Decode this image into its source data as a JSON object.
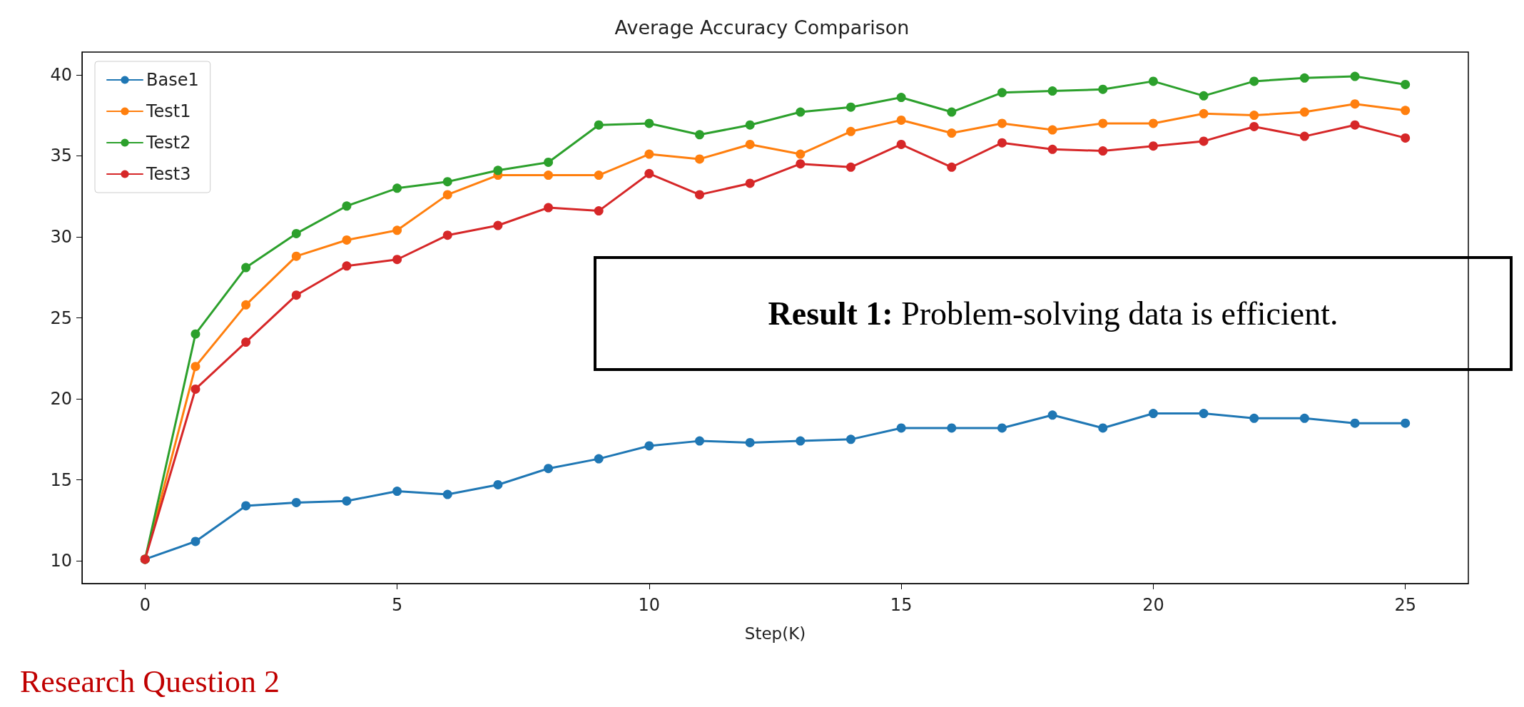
{
  "chart_data": {
    "type": "line",
    "title": "Average Accuracy Comparison",
    "xlabel": "Step(K)",
    "x": [
      0,
      1,
      2,
      3,
      4,
      5,
      6,
      7,
      8,
      9,
      10,
      11,
      12,
      13,
      14,
      15,
      16,
      17,
      18,
      19,
      20,
      21,
      22,
      23,
      24,
      25
    ],
    "series": [
      {
        "name": "Base1",
        "color": "#1f77b4",
        "values": [
          10.1,
          11.2,
          13.4,
          13.6,
          13.7,
          14.3,
          14.1,
          14.7,
          15.7,
          16.3,
          17.1,
          17.4,
          17.3,
          17.4,
          17.5,
          18.2,
          18.2,
          18.2,
          19.0,
          18.2,
          19.1,
          19.1,
          18.8,
          18.8,
          18.5,
          18.5
        ]
      },
      {
        "name": "Test1",
        "color": "#ff7f0e",
        "values": [
          10.1,
          22.0,
          25.8,
          28.8,
          29.8,
          30.4,
          32.6,
          33.8,
          33.8,
          33.8,
          35.1,
          34.8,
          35.7,
          35.1,
          36.5,
          37.2,
          36.4,
          37.0,
          36.6,
          37.0,
          37.0,
          37.6,
          37.5,
          37.7,
          38.2,
          37.8
        ]
      },
      {
        "name": "Test2",
        "color": "#2ca02c",
        "values": [
          10.1,
          24.0,
          28.1,
          30.2,
          31.9,
          33.0,
          33.4,
          34.1,
          34.6,
          36.9,
          37.0,
          36.3,
          36.9,
          37.7,
          38.0,
          38.6,
          37.7,
          38.9,
          39.0,
          39.1,
          39.6,
          38.7,
          39.6,
          39.8,
          39.9,
          39.4
        ]
      },
      {
        "name": "Test3",
        "color": "#d62728",
        "values": [
          10.1,
          20.6,
          23.5,
          26.4,
          28.2,
          28.6,
          30.1,
          30.7,
          31.8,
          31.6,
          33.9,
          32.6,
          33.3,
          34.5,
          34.3,
          35.7,
          34.3,
          35.8,
          35.4,
          35.3,
          35.6,
          35.9,
          36.8,
          36.2,
          36.9,
          36.1
        ]
      }
    ],
    "xlim": [
      -1.25,
      26.25
    ],
    "xticks": [
      0,
      5,
      10,
      15,
      20,
      25
    ],
    "ylim": [
      8.6,
      41.4
    ],
    "yticks": [
      10,
      15,
      20,
      25,
      30,
      35,
      40
    ],
    "grid": false,
    "legend": "top left",
    "marker": "circle",
    "line_style": "solid",
    "annotations": [
      "Result 1: Problem-solving data is efficient.",
      "Research Question 2"
    ]
  }
}
